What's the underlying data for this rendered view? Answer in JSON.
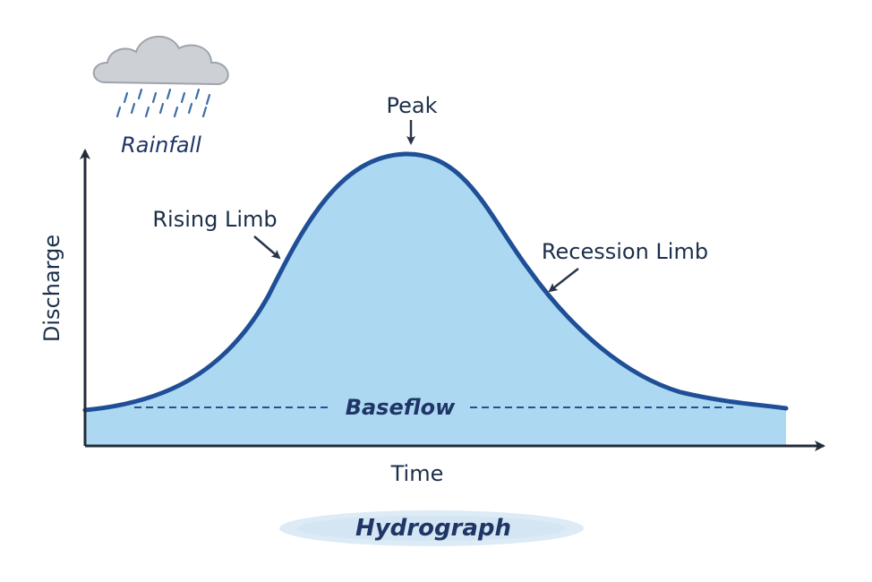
{
  "labels": {
    "rainfall": "Rainfall",
    "peak": "Peak",
    "rising_limb": "Rising Limb",
    "recession_limb": "Recession Limb",
    "baseflow": "Baseflow",
    "x_axis": "Time",
    "y_axis": "Discharge",
    "title": "Hydrograph"
  },
  "icons": {
    "rain_cloud": "rain-cloud-icon"
  },
  "colors": {
    "curve": "#1f4f96",
    "fill": "#acd8f2",
    "axis": "#222b38",
    "text": "#1c2f4a",
    "baseflow_line": "#2b4f8e",
    "cloud": "#cdd1d6",
    "rain": "#3f6ea6",
    "title_banner": "#dcebf5"
  }
}
